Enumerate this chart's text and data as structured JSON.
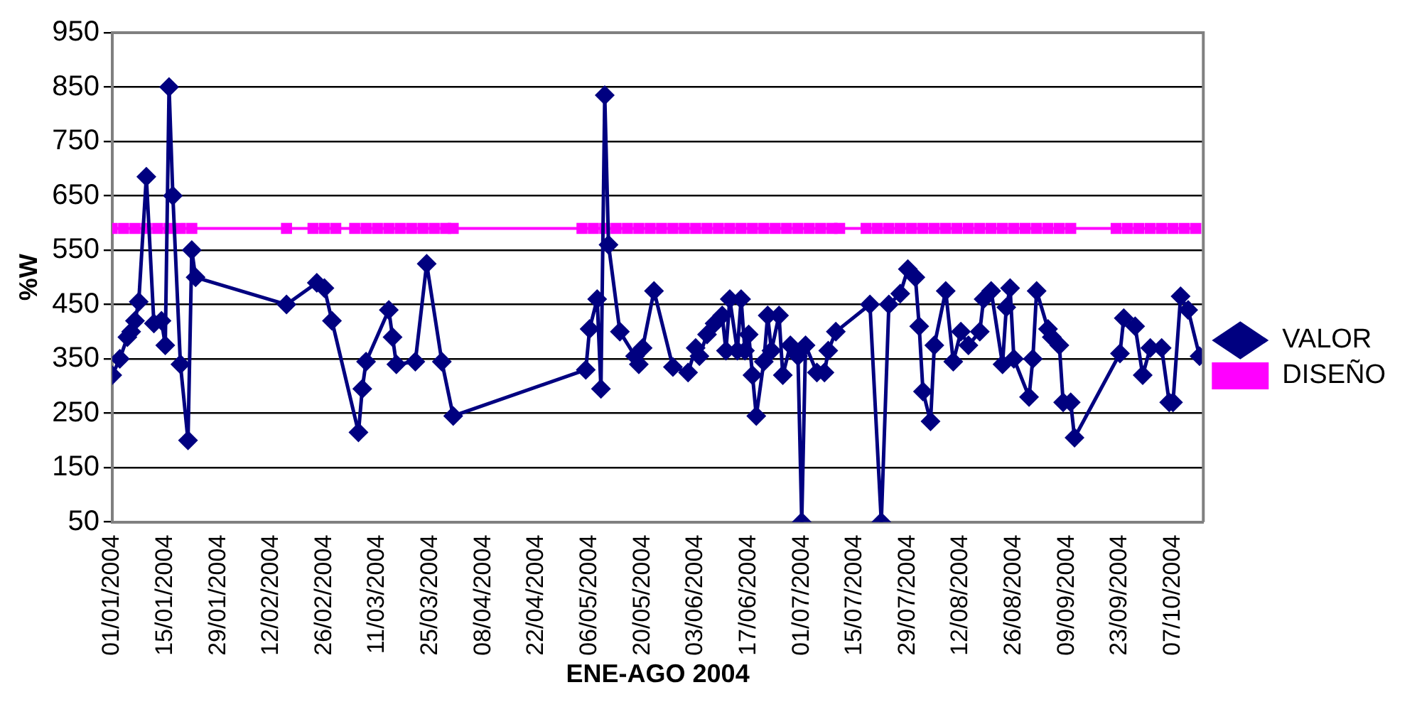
{
  "chart_data": {
    "type": "line",
    "xlabel": "ENE-AGO 2004",
    "ylabel": "%W",
    "legend": "right",
    "grid": "y",
    "xlim": [
      "2004-01-01",
      "2004-10-15"
    ],
    "xticks": [
      {
        "value": "2004-01-01",
        "label": "01/01/2004"
      },
      {
        "value": "2004-01-15",
        "label": "15/01/2004"
      },
      {
        "value": "2004-01-29",
        "label": "29/01/2004"
      },
      {
        "value": "2004-02-12",
        "label": "12/02/2004"
      },
      {
        "value": "2004-02-26",
        "label": "26/02/2004"
      },
      {
        "value": "2004-03-11",
        "label": "11/03/2004"
      },
      {
        "value": "2004-03-25",
        "label": "25/03/2004"
      },
      {
        "value": "2004-04-08",
        "label": "08/04/2004"
      },
      {
        "value": "2004-04-22",
        "label": "22/04/2004"
      },
      {
        "value": "2004-05-06",
        "label": "06/05/2004"
      },
      {
        "value": "2004-05-20",
        "label": "20/05/2004"
      },
      {
        "value": "2004-06-03",
        "label": "03/06/2004"
      },
      {
        "value": "2004-06-17",
        "label": "17/06/2004"
      },
      {
        "value": "2004-07-01",
        "label": "01/07/2004"
      },
      {
        "value": "2004-07-15",
        "label": "15/07/2004"
      },
      {
        "value": "2004-07-29",
        "label": "29/07/2004"
      },
      {
        "value": "2004-08-12",
        "label": "12/08/2004"
      },
      {
        "value": "2004-08-26",
        "label": "26/08/2004"
      },
      {
        "value": "2004-09-09",
        "label": "09/09/2004"
      },
      {
        "value": "2004-09-23",
        "label": "23/09/2004"
      },
      {
        "value": "2004-10-07",
        "label": "07/10/2004"
      }
    ],
    "ylim": [
      50,
      950
    ],
    "yticks": [
      50,
      150,
      250,
      350,
      450,
      550,
      650,
      750,
      850,
      950
    ],
    "series": [
      {
        "name": "VALOR",
        "color": "#000080",
        "marker": "diamond",
        "x": [
          "2004-01-01",
          "2004-01-03",
          "2004-01-05",
          "2004-01-06",
          "2004-01-07",
          "2004-01-08",
          "2004-01-10",
          "2004-01-12",
          "2004-01-14",
          "2004-01-15",
          "2004-01-16",
          "2004-01-17",
          "2004-01-19",
          "2004-01-21",
          "2004-01-22",
          "2004-01-23",
          "2004-02-16",
          "2004-02-24",
          "2004-02-26",
          "2004-02-28",
          "2004-03-06",
          "2004-03-07",
          "2004-03-08",
          "2004-03-14",
          "2004-03-15",
          "2004-03-16",
          "2004-03-21",
          "2004-03-24",
          "2004-03-28",
          "2004-03-31",
          "2004-05-05",
          "2004-05-06",
          "2004-05-08",
          "2004-05-09",
          "2004-05-10",
          "2004-05-11",
          "2004-05-14",
          "2004-05-18",
          "2004-05-19",
          "2004-05-20",
          "2004-05-23",
          "2004-05-28",
          "2004-06-01",
          "2004-06-03",
          "2004-06-04",
          "2004-06-06",
          "2004-06-08",
          "2004-06-10",
          "2004-06-11",
          "2004-06-12",
          "2004-06-14",
          "2004-06-15",
          "2004-06-16",
          "2004-06-17",
          "2004-06-18",
          "2004-06-19",
          "2004-06-21",
          "2004-06-22",
          "2004-06-23",
          "2004-06-25",
          "2004-06-26",
          "2004-06-28",
          "2004-06-30",
          "2004-07-01",
          "2004-07-02",
          "2004-07-05",
          "2004-07-07",
          "2004-07-08",
          "2004-07-10",
          "2004-07-19",
          "2004-07-22",
          "2004-07-24",
          "2004-07-27",
          "2004-07-29",
          "2004-07-31",
          "2004-08-01",
          "2004-08-02",
          "2004-08-04",
          "2004-08-05",
          "2004-08-08",
          "2004-08-10",
          "2004-08-12",
          "2004-08-14",
          "2004-08-17",
          "2004-08-18",
          "2004-08-20",
          "2004-08-23",
          "2004-08-24",
          "2004-08-25",
          "2004-08-26",
          "2004-08-30",
          "2004-08-31",
          "2004-09-01",
          "2004-09-04",
          "2004-09-05",
          "2004-09-07",
          "2004-09-08",
          "2004-09-10",
          "2004-09-11",
          "2004-09-23",
          "2004-09-24",
          "2004-09-27",
          "2004-09-29",
          "2004-10-01",
          "2004-10-04",
          "2004-10-06",
          "2004-10-07",
          "2004-10-09",
          "2004-10-11",
          "2004-10-14"
        ],
        "values": [
          320,
          350,
          390,
          400,
          420,
          455,
          685,
          415,
          420,
          375,
          850,
          650,
          340,
          200,
          550,
          500,
          450,
          490,
          480,
          420,
          215,
          295,
          345,
          440,
          390,
          340,
          345,
          525,
          345,
          245,
          330,
          405,
          460,
          295,
          835,
          560,
          400,
          355,
          340,
          370,
          475,
          335,
          325,
          370,
          355,
          395,
          415,
          430,
          365,
          460,
          365,
          460,
          365,
          395,
          320,
          245,
          345,
          430,
          365,
          430,
          320,
          375,
          355,
          50,
          375,
          325,
          325,
          365,
          400,
          450,
          50,
          450,
          470,
          515,
          500,
          410,
          290,
          235,
          375,
          475,
          345,
          400,
          375,
          400,
          460,
          475,
          340,
          445,
          480,
          350,
          280,
          350,
          475,
          405,
          390,
          375,
          270,
          270,
          205,
          360,
          425,
          410,
          320,
          370,
          370,
          270,
          270,
          465,
          440,
          355
        ]
      },
      {
        "name": "DISEÑO",
        "color": "#ff00ff",
        "marker": "square",
        "x": [
          "2004-01-01",
          "2004-01-04",
          "2004-01-07",
          "2004-01-10",
          "2004-01-13",
          "2004-01-16",
          "2004-01-19",
          "2004-01-22",
          "2004-02-16",
          "2004-02-23",
          "2004-02-26",
          "2004-02-29",
          "2004-03-05",
          "2004-03-08",
          "2004-03-11",
          "2004-03-14",
          "2004-03-17",
          "2004-03-20",
          "2004-03-23",
          "2004-03-26",
          "2004-03-29",
          "2004-03-31",
          "2004-05-04",
          "2004-05-07",
          "2004-05-10",
          "2004-05-13",
          "2004-05-16",
          "2004-05-19",
          "2004-05-22",
          "2004-05-25",
          "2004-05-28",
          "2004-05-31",
          "2004-06-03",
          "2004-06-06",
          "2004-06-09",
          "2004-06-12",
          "2004-06-15",
          "2004-06-18",
          "2004-06-21",
          "2004-06-24",
          "2004-06-27",
          "2004-06-30",
          "2004-07-03",
          "2004-07-06",
          "2004-07-09",
          "2004-07-11",
          "2004-07-18",
          "2004-07-21",
          "2004-07-24",
          "2004-07-27",
          "2004-07-30",
          "2004-08-02",
          "2004-08-05",
          "2004-08-08",
          "2004-08-11",
          "2004-08-14",
          "2004-08-17",
          "2004-08-20",
          "2004-08-23",
          "2004-08-26",
          "2004-08-29",
          "2004-09-01",
          "2004-09-04",
          "2004-09-07",
          "2004-09-10",
          "2004-09-22",
          "2004-09-25",
          "2004-09-28",
          "2004-10-01",
          "2004-10-04",
          "2004-10-07",
          "2004-10-10",
          "2004-10-13"
        ],
        "values": [
          590,
          590,
          590,
          590,
          590,
          590,
          590,
          590,
          590,
          590,
          590,
          590,
          590,
          590,
          590,
          590,
          590,
          590,
          590,
          590,
          590,
          590,
          590,
          590,
          590,
          590,
          590,
          590,
          590,
          590,
          590,
          590,
          590,
          590,
          590,
          590,
          590,
          590,
          590,
          590,
          590,
          590,
          590,
          590,
          590,
          590,
          590,
          590,
          590,
          590,
          590,
          590,
          590,
          590,
          590,
          590,
          590,
          590,
          590,
          590,
          590,
          590,
          590,
          590,
          590,
          590,
          590,
          590,
          590,
          590,
          590,
          590,
          590
        ]
      }
    ]
  }
}
